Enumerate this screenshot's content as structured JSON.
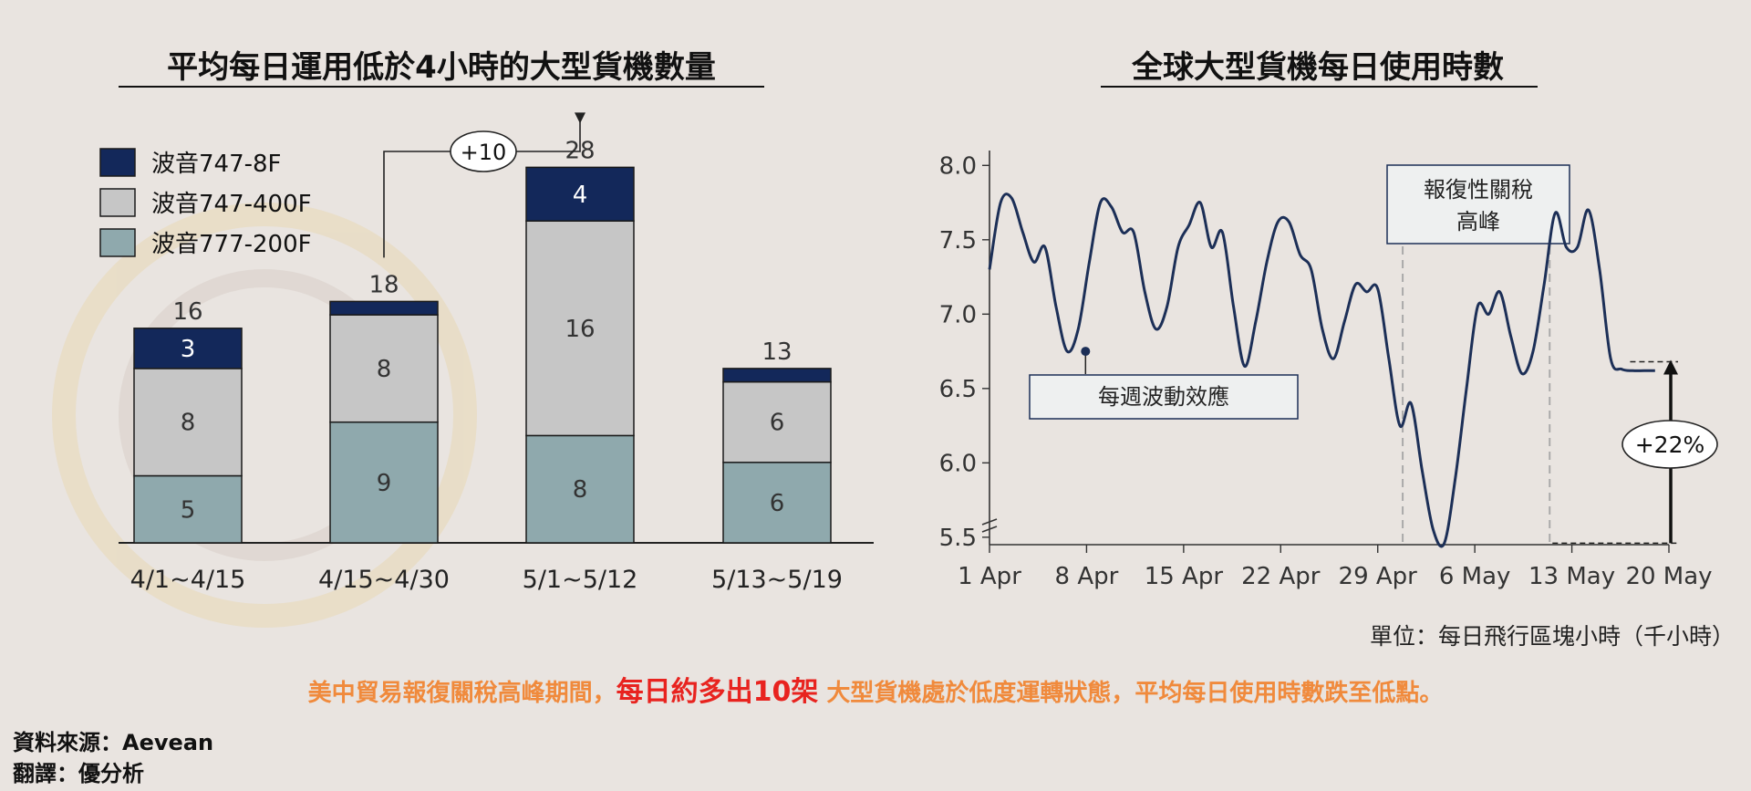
{
  "chart_data": [
    {
      "type": "bar",
      "stacked": true,
      "title": "平均每日運用低於4小時的大型貨機數量",
      "categories": [
        "4/1~4/15",
        "4/15~4/30",
        "5/1~5/12",
        "5/13~5/19"
      ],
      "series": [
        {
          "name": "波音777-200F",
          "color": "#8fa9ad",
          "values": [
            5,
            9,
            8,
            6
          ]
        },
        {
          "name": "波音747-400F",
          "color": "#c6c6c6",
          "values": [
            8,
            8,
            16,
            6
          ]
        },
        {
          "name": "波音747-8F",
          "color": "#13285a",
          "values": [
            3,
            1,
            4,
            1
          ]
        }
      ],
      "segment_labels": [
        [
          "5",
          "8",
          "3"
        ],
        [
          "9",
          "8",
          ""
        ],
        [
          "8",
          "16",
          "4"
        ],
        [
          "6",
          "6",
          ""
        ]
      ],
      "totals": [
        16,
        18,
        28,
        13
      ],
      "legend_position": "top-left",
      "annotation": {
        "text": "+10",
        "from_category": "4/15~4/30",
        "to_category": "5/1~5/12"
      },
      "ylim": [
        0,
        30
      ]
    },
    {
      "type": "line",
      "title": "全球大型貨機每日使用時數",
      "x_ticks": [
        "1 Apr",
        "8 Apr",
        "15 Apr",
        "22 Apr",
        "29 Apr",
        "6 May",
        "13 May",
        "20 May"
      ],
      "y_ticks": [
        "8.0",
        "7.5",
        "7.0",
        "6.5",
        "6.0",
        "5.5"
      ],
      "ylim": [
        5.45,
        8.1
      ],
      "xlim": [
        0,
        49
      ],
      "line_color": "#1c2f57",
      "series": [
        {
          "x": [
            0,
            0.8,
            1.6,
            2.4,
            3.2,
            4.0,
            4.8,
            5.6,
            6.4,
            7.2,
            8.0,
            8.8,
            9.6,
            10.4,
            11.2,
            12.0,
            12.8,
            13.6,
            14.4,
            15.2,
            16.0,
            16.8,
            17.6,
            18.4,
            19.2,
            20.0,
            20.8,
            21.6,
            22.4,
            23.2,
            24.0,
            24.8,
            25.6,
            26.4,
            27.2,
            28.0,
            28.8,
            29.6,
            30.4,
            31.2,
            32.0,
            32.8,
            33.6,
            34.4,
            35.2,
            36.0,
            36.8,
            37.6,
            38.4,
            39.2,
            40.0,
            40.8,
            41.6,
            42.4,
            43.2,
            44.0,
            44.8,
            45.6,
            46.4,
            47.2,
            48.0
          ],
          "y": [
            7.3,
            7.75,
            7.78,
            7.55,
            7.35,
            7.45,
            7.05,
            6.75,
            6.9,
            7.35,
            7.75,
            7.72,
            7.55,
            7.55,
            7.15,
            6.9,
            7.05,
            7.45,
            7.6,
            7.75,
            7.45,
            7.55,
            7.05,
            6.65,
            6.95,
            7.35,
            7.62,
            7.62,
            7.4,
            7.3,
            6.9,
            6.7,
            6.95,
            7.2,
            7.15,
            7.17,
            6.7,
            6.25,
            6.4,
            5.95,
            5.55,
            5.46,
            5.9,
            6.5,
            7.05,
            7.0,
            7.15,
            6.85,
            6.6,
            6.75,
            7.2,
            7.68,
            7.45,
            7.45,
            7.7,
            7.3,
            6.7,
            6.63,
            6.62,
            6.62,
            6.62
          ]
        }
      ],
      "shaded_period": {
        "x_start": 29.8,
        "x_end": 40.4,
        "label_line1": "報復性關稅",
        "label_line2": "高峰"
      },
      "annotations": [
        {
          "text": "每週波動效應",
          "point_x": 6.4,
          "point_y": 6.75
        },
        {
          "text": "+22%",
          "from_y": 5.46,
          "to_y": 6.68
        }
      ],
      "unit_label": "單位：每日飛行區塊小時（千小時）"
    }
  ],
  "footer": {
    "line_part1": "美中貿易報復關稅高峰期間，",
    "line_highlight": "每日約多出10架",
    "line_part2": " 大型貨機處於低度運轉狀態，平均每日使用時數跌至低點。",
    "source": "資料來源：Aevean",
    "translation": "翻譯：優分析"
  },
  "colors": {
    "background": "#e9e4e0",
    "accent_orange": "#f08a3c",
    "accent_red": "#e8231f",
    "navy": "#13285a"
  }
}
